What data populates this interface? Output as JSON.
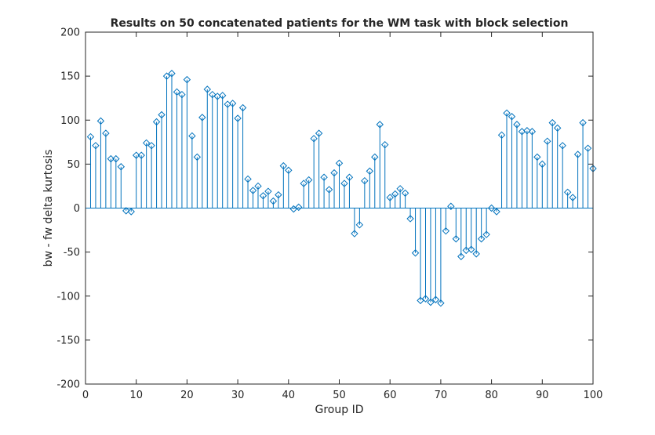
{
  "chart_data": {
    "type": "stem",
    "title": "Results on 50 concatenated patients for the WM task with block selection",
    "xlabel": "Group ID",
    "ylabel": "bw - fw delta kurtosis",
    "xlim": [
      0,
      100
    ],
    "ylim": [
      -200,
      200
    ],
    "xticks": [
      0,
      10,
      20,
      30,
      40,
      50,
      60,
      70,
      80,
      90,
      100
    ],
    "yticks": [
      -200,
      -150,
      -100,
      -50,
      0,
      50,
      100,
      150,
      200
    ],
    "grid": false,
    "marker": "diamond",
    "color": "#0072BD",
    "x": [
      1,
      2,
      3,
      4,
      5,
      6,
      7,
      8,
      9,
      10,
      11,
      12,
      13,
      14,
      15,
      16,
      17,
      18,
      19,
      20,
      21,
      22,
      23,
      24,
      25,
      26,
      27,
      28,
      29,
      30,
      31,
      32,
      33,
      34,
      35,
      36,
      37,
      38,
      39,
      40,
      41,
      42,
      43,
      44,
      45,
      46,
      47,
      48,
      49,
      50,
      51,
      52,
      53,
      54,
      55,
      56,
      57,
      58,
      59,
      60,
      61,
      62,
      63,
      64,
      65,
      66,
      67,
      68,
      69,
      70,
      71,
      72,
      73,
      74,
      75,
      76,
      77,
      78,
      79,
      80,
      81,
      82,
      83,
      84,
      85,
      86,
      87,
      88,
      89,
      90,
      91,
      92,
      93,
      94,
      95,
      96,
      97,
      98,
      99,
      100
    ],
    "values": [
      81,
      71,
      99,
      85,
      56,
      56,
      47,
      -3,
      -4,
      60,
      60,
      74,
      71,
      98,
      106,
      150,
      153,
      132,
      129,
      146,
      82,
      58,
      103,
      135,
      129,
      127,
      128,
      118,
      119,
      102,
      114,
      33,
      20,
      25,
      14,
      19,
      8,
      15,
      48,
      43,
      -1,
      1,
      28,
      32,
      79,
      85,
      35,
      21,
      40,
      51,
      28,
      35,
      -29,
      -19,
      31,
      42,
      58,
      95,
      72,
      12,
      16,
      22,
      17,
      -12,
      -51,
      -105,
      -103,
      -107,
      -104,
      -108,
      -26,
      2,
      -35,
      -55,
      -48,
      -47,
      -52,
      -35,
      -30,
      0,
      -4,
      83,
      108,
      104,
      95,
      87,
      88,
      87,
      58,
      50,
      76,
      97,
      91,
      71,
      18,
      12,
      61,
      97,
      68,
      45
    ]
  }
}
